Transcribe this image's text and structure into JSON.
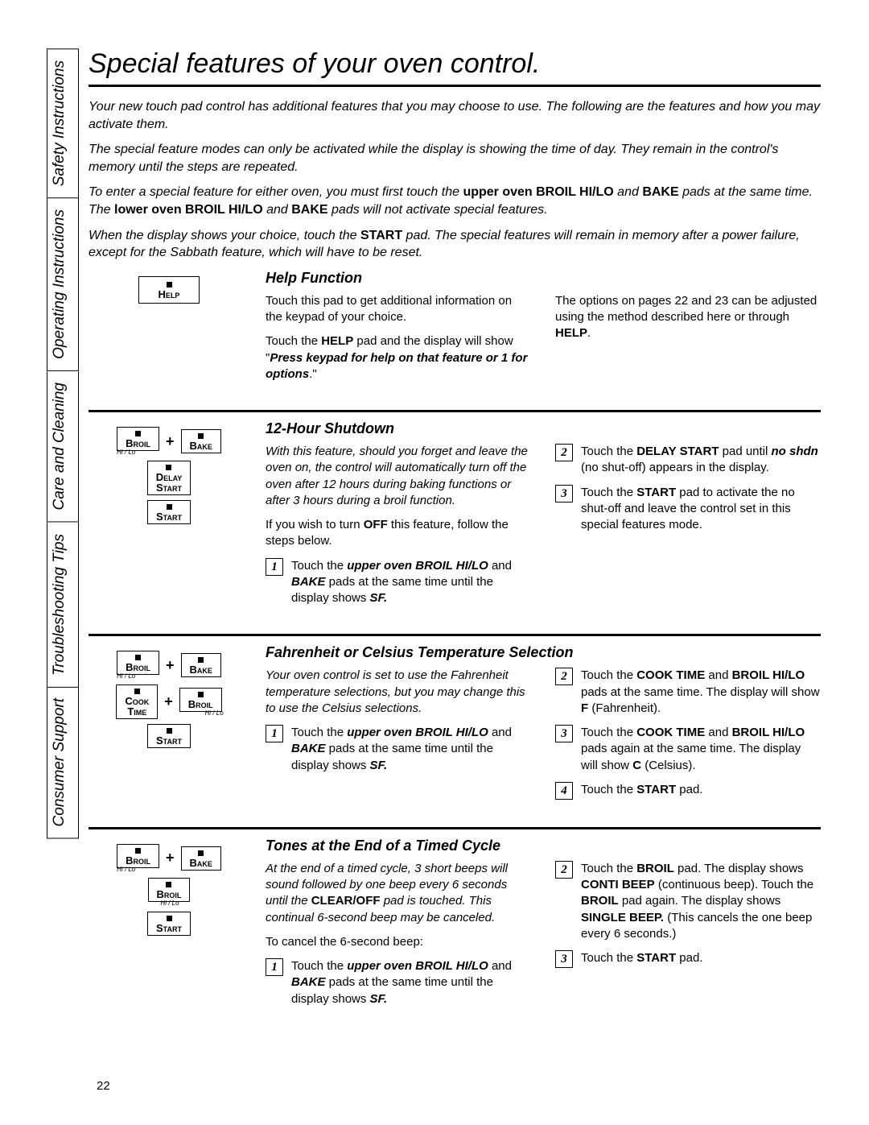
{
  "page_number": "22",
  "title": "Special features of your oven control.",
  "tabs": [
    "Safety Instructions",
    "Operating Instructions",
    "Care and Cleaning",
    "Troubleshooting Tips",
    "Consumer Support"
  ],
  "intro": {
    "p1": "Your new touch pad control has additional features that you may choose to use. The following are the features and how you may activate them.",
    "p2": "The special feature modes can only be activated while the display is showing the time of day. They remain in the control's memory until the steps are repeated.",
    "p3_a": "To enter a special feature for either oven, you must first touch the ",
    "p3_b1": "upper oven BROIL HI/LO",
    "p3_c": " and ",
    "p3_b2": "BAKE",
    "p3_d": " pads at the same time. The ",
    "p3_b3": "lower oven BROIL HI/LO",
    "p3_e": " and ",
    "p3_b4": "BAKE",
    "p3_f": " pads will not activate special features.",
    "p4_a": "When the display shows your choice, touch the ",
    "p4_b": "START",
    "p4_c": " pad. The special features will remain in memory after a power failure, except for the Sabbath feature, which will have to be reset."
  },
  "pads": {
    "help": "Help",
    "broil": "Broil",
    "bake": "Bake",
    "hilo": "Hi / Lo",
    "delay_start1": "Delay",
    "delay_start2": "Start",
    "start": "Start",
    "cook_time1": "Cook",
    "cook_time2": "Time"
  },
  "help": {
    "title": "Help Function",
    "l1": "Touch this pad to get additional information on the keypad of your choice.",
    "l2_a": "Touch the ",
    "l2_b": "HELP",
    "l2_c": " pad and the display will show \"",
    "l2_d": "Press keypad for help on that feature or 1 for options",
    "l2_e": ".\"",
    "r1_a": "The options on pages 22 and 23 can be adjusted using the method described here or through ",
    "r1_b": "HELP",
    "r1_c": "."
  },
  "shutdown": {
    "title": "12-Hour Shutdown",
    "l1": "With this feature, should you forget and leave the oven on, the control will automatically turn off the oven after 12 hours during baking functions or after 3 hours during a broil function.",
    "l2_a": "If you wish to turn ",
    "l2_b": "OFF",
    "l2_c": " this feature, follow the steps below.",
    "s1_a": "Touch the ",
    "s1_b": "upper oven BROIL HI/LO",
    "s1_c": " and ",
    "s1_d": "BAKE",
    "s1_e": " pads at the same time until the display shows ",
    "s1_f": "SF.",
    "s2_a": "Touch the ",
    "s2_b": "DELAY START",
    "s2_c": " pad until ",
    "s2_d": "no shdn",
    "s2_e": " (no shut-off) appears in the display.",
    "s3_a": "Touch the ",
    "s3_b": "START",
    "s3_c": " pad to activate the no shut-off and leave the control set in this special features mode."
  },
  "temp": {
    "title": "Fahrenheit or Celsius Temperature Selection",
    "l1": "Your oven control is set to use the Fahrenheit temperature selections, but you may change this to use the Celsius selections.",
    "s1_a": "Touch the ",
    "s1_b": "upper oven BROIL HI/LO",
    "s1_c": " and ",
    "s1_d": "BAKE",
    "s1_e": " pads at the same time until the display shows ",
    "s1_f": "SF.",
    "s2_a": "Touch the ",
    "s2_b": "COOK TIME",
    "s2_c": " and ",
    "s2_d": "BROIL HI/LO",
    "s2_e": " pads at the same time. The display will show ",
    "s2_f": "F",
    "s2_g": " (Fahrenheit).",
    "s3_a": "Touch the ",
    "s3_b": "COOK TIME",
    "s3_c": " and ",
    "s3_d": "BROIL HI/LO",
    "s3_e": " pads again at the same time. The display will show ",
    "s3_f": "C",
    "s3_g": " (Celsius).",
    "s4_a": "Touch the ",
    "s4_b": "START",
    "s4_c": " pad."
  },
  "tones": {
    "title": "Tones at the End of a Timed Cycle",
    "l1_a": "At the end of a timed cycle, 3 short beeps will sound followed by one beep every 6 seconds until the ",
    "l1_b": "CLEAR/OFF",
    "l1_c": " pad is touched. This continual 6-second beep may be canceled.",
    "l2": "To cancel the 6-second beep:",
    "s1_a": "Touch the ",
    "s1_b": "upper oven BROIL HI/LO",
    "s1_c": " and ",
    "s1_d": "BAKE",
    "s1_e": " pads at the same time until the display shows ",
    "s1_f": "SF.",
    "s2_a": "Touch the ",
    "s2_b": "BROIL",
    "s2_c": " pad. The display shows ",
    "s2_d": "CONTI BEEP",
    "s2_e": " (continuous beep). Touch the ",
    "s2_f": "BROIL",
    "s2_g": " pad again. The display shows ",
    "s2_h": "SINGLE BEEP.",
    "s2_i": " (This cancels the one beep every 6 seconds.)",
    "s3_a": "Touch the ",
    "s3_b": "START",
    "s3_c": " pad."
  }
}
